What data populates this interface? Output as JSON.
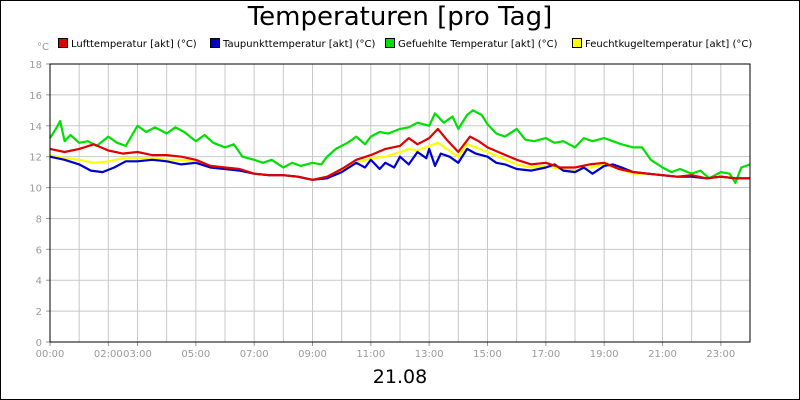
{
  "chart_data": {
    "type": "line",
    "title": "Temperaturen [pro Tag]",
    "ylabel": "°C",
    "xlabel": "21.08",
    "ylim": [
      0,
      18
    ],
    "yticks": [
      0,
      2,
      4,
      6,
      8,
      10,
      12,
      14,
      16,
      18
    ],
    "xlim": [
      0,
      24
    ],
    "xticks": [
      {
        "t": 0,
        "label": "00:00"
      },
      {
        "t": 2,
        "label": "02:00"
      },
      {
        "t": 3,
        "label": "03:00"
      },
      {
        "t": 5,
        "label": "05:00"
      },
      {
        "t": 7,
        "label": "07:00"
      },
      {
        "t": 9,
        "label": "09:00"
      },
      {
        "t": 11,
        "label": "11:00"
      },
      {
        "t": 13,
        "label": "13:00"
      },
      {
        "t": 15,
        "label": "15:00"
      },
      {
        "t": 17,
        "label": "17:00"
      },
      {
        "t": 19,
        "label": "19:00"
      },
      {
        "t": 21,
        "label": "21:00"
      },
      {
        "t": 23,
        "label": "23:00"
      }
    ],
    "grid": true,
    "series": [
      {
        "name": "Lufttemperatur [akt] (°C)",
        "color": "#e00000",
        "points": [
          [
            0,
            12.5
          ],
          [
            0.5,
            12.3
          ],
          [
            1,
            12.5
          ],
          [
            1.5,
            12.8
          ],
          [
            2,
            12.4
          ],
          [
            2.5,
            12.2
          ],
          [
            3,
            12.3
          ],
          [
            3.5,
            12.1
          ],
          [
            4,
            12.1
          ],
          [
            4.5,
            12
          ],
          [
            5,
            11.8
          ],
          [
            5.5,
            11.4
          ],
          [
            6,
            11.3
          ],
          [
            6.5,
            11.2
          ],
          [
            7,
            10.9
          ],
          [
            7.5,
            10.8
          ],
          [
            8,
            10.8
          ],
          [
            8.5,
            10.7
          ],
          [
            9,
            10.5
          ],
          [
            9.5,
            10.7
          ],
          [
            10,
            11.2
          ],
          [
            10.5,
            11.8
          ],
          [
            11,
            12.1
          ],
          [
            11.5,
            12.5
          ],
          [
            12,
            12.7
          ],
          [
            12.3,
            13.2
          ],
          [
            12.6,
            12.8
          ],
          [
            13,
            13.2
          ],
          [
            13.3,
            13.8
          ],
          [
            13.6,
            13.1
          ],
          [
            14,
            12.3
          ],
          [
            14.4,
            13.3
          ],
          [
            14.7,
            13.0
          ],
          [
            15,
            12.6
          ],
          [
            15.5,
            12.2
          ],
          [
            16,
            11.8
          ],
          [
            16.5,
            11.5
          ],
          [
            17,
            11.6
          ],
          [
            17.5,
            11.3
          ],
          [
            18,
            11.3
          ],
          [
            18.5,
            11.5
          ],
          [
            19,
            11.6
          ],
          [
            19.5,
            11.2
          ],
          [
            20,
            11
          ],
          [
            20.5,
            10.9
          ],
          [
            21,
            10.8
          ],
          [
            21.5,
            10.7
          ],
          [
            22,
            10.8
          ],
          [
            22.5,
            10.6
          ],
          [
            23,
            10.7
          ],
          [
            23.5,
            10.6
          ],
          [
            24,
            10.6
          ]
        ]
      },
      {
        "name": "Taupunkttemperatur [akt] (°C)",
        "color": "#0000cc",
        "points": [
          [
            0,
            12
          ],
          [
            0.5,
            11.8
          ],
          [
            1,
            11.5
          ],
          [
            1.4,
            11.1
          ],
          [
            1.8,
            11
          ],
          [
            2.2,
            11.3
          ],
          [
            2.6,
            11.7
          ],
          [
            3,
            11.7
          ],
          [
            3.5,
            11.8
          ],
          [
            4,
            11.7
          ],
          [
            4.5,
            11.5
          ],
          [
            5,
            11.6
          ],
          [
            5.5,
            11.3
          ],
          [
            6,
            11.2
          ],
          [
            6.5,
            11.1
          ],
          [
            7,
            10.9
          ],
          [
            7.5,
            10.8
          ],
          [
            8,
            10.8
          ],
          [
            8.5,
            10.7
          ],
          [
            9,
            10.5
          ],
          [
            9.5,
            10.6
          ],
          [
            10,
            11
          ],
          [
            10.5,
            11.6
          ],
          [
            10.8,
            11.3
          ],
          [
            11,
            11.8
          ],
          [
            11.3,
            11.2
          ],
          [
            11.5,
            11.6
          ],
          [
            11.8,
            11.3
          ],
          [
            12,
            12
          ],
          [
            12.3,
            11.5
          ],
          [
            12.6,
            12.3
          ],
          [
            12.9,
            11.9
          ],
          [
            13,
            12.5
          ],
          [
            13.2,
            11.4
          ],
          [
            13.4,
            12.2
          ],
          [
            13.7,
            12.0
          ],
          [
            14,
            11.6
          ],
          [
            14.3,
            12.5
          ],
          [
            14.6,
            12.2
          ],
          [
            15,
            12.0
          ],
          [
            15.3,
            11.6
          ],
          [
            15.6,
            11.5
          ],
          [
            16,
            11.2
          ],
          [
            16.5,
            11.1
          ],
          [
            17,
            11.3
          ],
          [
            17.3,
            11.5
          ],
          [
            17.6,
            11.1
          ],
          [
            18,
            11.0
          ],
          [
            18.3,
            11.3
          ],
          [
            18.6,
            10.9
          ],
          [
            19,
            11.4
          ],
          [
            19.3,
            11.5
          ],
          [
            19.6,
            11.3
          ],
          [
            20,
            11.0
          ],
          [
            20.5,
            10.9
          ],
          [
            21,
            10.8
          ],
          [
            21.5,
            10.7
          ],
          [
            22,
            10.7
          ],
          [
            22.5,
            10.6
          ],
          [
            23,
            10.7
          ],
          [
            23.5,
            10.6
          ],
          [
            24,
            10.6
          ]
        ]
      },
      {
        "name": "Gefuehlte Temperatur [akt] (°C)",
        "color": "#00e000",
        "points": [
          [
            0,
            13.2
          ],
          [
            0.2,
            13.8
          ],
          [
            0.35,
            14.3
          ],
          [
            0.5,
            13.0
          ],
          [
            0.7,
            13.4
          ],
          [
            1,
            12.9
          ],
          [
            1.3,
            13.0
          ],
          [
            1.6,
            12.7
          ],
          [
            2,
            13.3
          ],
          [
            2.3,
            12.9
          ],
          [
            2.6,
            12.7
          ],
          [
            3,
            14.0
          ],
          [
            3.3,
            13.6
          ],
          [
            3.6,
            13.9
          ],
          [
            4,
            13.5
          ],
          [
            4.3,
            13.9
          ],
          [
            4.6,
            13.6
          ],
          [
            5,
            13.0
          ],
          [
            5.3,
            13.4
          ],
          [
            5.6,
            12.9
          ],
          [
            6,
            12.6
          ],
          [
            6.3,
            12.8
          ],
          [
            6.6,
            12.0
          ],
          [
            7,
            11.8
          ],
          [
            7.3,
            11.6
          ],
          [
            7.6,
            11.8
          ],
          [
            8,
            11.3
          ],
          [
            8.3,
            11.6
          ],
          [
            8.6,
            11.4
          ],
          [
            9,
            11.6
          ],
          [
            9.3,
            11.5
          ],
          [
            9.5,
            12.0
          ],
          [
            9.8,
            12.5
          ],
          [
            10.2,
            12.9
          ],
          [
            10.5,
            13.3
          ],
          [
            10.8,
            12.8
          ],
          [
            11,
            13.3
          ],
          [
            11.3,
            13.6
          ],
          [
            11.6,
            13.5
          ],
          [
            12,
            13.8
          ],
          [
            12.3,
            13.9
          ],
          [
            12.6,
            14.2
          ],
          [
            13,
            14.0
          ],
          [
            13.2,
            14.8
          ],
          [
            13.5,
            14.2
          ],
          [
            13.8,
            14.6
          ],
          [
            14,
            13.8
          ],
          [
            14.3,
            14.7
          ],
          [
            14.5,
            15.0
          ],
          [
            14.8,
            14.7
          ],
          [
            15,
            14.1
          ],
          [
            15.3,
            13.5
          ],
          [
            15.6,
            13.3
          ],
          [
            16,
            13.8
          ],
          [
            16.3,
            13.1
          ],
          [
            16.6,
            13.0
          ],
          [
            17,
            13.2
          ],
          [
            17.3,
            12.9
          ],
          [
            17.6,
            13.0
          ],
          [
            18,
            12.6
          ],
          [
            18.3,
            13.2
          ],
          [
            18.6,
            13.0
          ],
          [
            19,
            13.2
          ],
          [
            19.3,
            13.0
          ],
          [
            19.6,
            12.8
          ],
          [
            20,
            12.6
          ],
          [
            20.3,
            12.6
          ],
          [
            20.6,
            11.8
          ],
          [
            21,
            11.3
          ],
          [
            21.3,
            11.0
          ],
          [
            21.6,
            11.2
          ],
          [
            22,
            10.9
          ],
          [
            22.3,
            11.1
          ],
          [
            22.6,
            10.6
          ],
          [
            23,
            11.0
          ],
          [
            23.3,
            10.9
          ],
          [
            23.5,
            10.3
          ],
          [
            23.7,
            11.3
          ],
          [
            24,
            11.5
          ]
        ]
      },
      {
        "name": "Feuchtkugeltemperatur [akt] (°C)",
        "color": "#ffff00",
        "points": [
          [
            0,
            12.1
          ],
          [
            0.5,
            11.9
          ],
          [
            1,
            11.8
          ],
          [
            1.5,
            11.6
          ],
          [
            2,
            11.7
          ],
          [
            2.5,
            11.9
          ],
          [
            3,
            11.9
          ],
          [
            3.5,
            11.9
          ],
          [
            4,
            11.8
          ],
          [
            4.5,
            11.8
          ],
          [
            5,
            11.7
          ],
          [
            5.5,
            11.3
          ],
          [
            6,
            11.2
          ],
          [
            6.5,
            11.1
          ],
          [
            7,
            10.9
          ],
          [
            7.5,
            10.8
          ],
          [
            8,
            10.8
          ],
          [
            8.5,
            10.7
          ],
          [
            9,
            10.5
          ],
          [
            9.5,
            10.6
          ],
          [
            10,
            11.1
          ],
          [
            10.5,
            11.6
          ],
          [
            11,
            11.9
          ],
          [
            11.5,
            12.0
          ],
          [
            12,
            12.3
          ],
          [
            12.3,
            12.5
          ],
          [
            12.6,
            12.4
          ],
          [
            13,
            12.7
          ],
          [
            13.3,
            12.9
          ],
          [
            13.6,
            12.5
          ],
          [
            14,
            12.0
          ],
          [
            14.3,
            12.8
          ],
          [
            14.6,
            12.6
          ],
          [
            15,
            12.3
          ],
          [
            15.5,
            11.9
          ],
          [
            16,
            11.5
          ],
          [
            16.5,
            11.3
          ],
          [
            17,
            11.4
          ],
          [
            17.5,
            11.2
          ],
          [
            18,
            11.1
          ],
          [
            18.5,
            11.3
          ],
          [
            19,
            11.5
          ],
          [
            19.5,
            11.2
          ],
          [
            20,
            10.9
          ],
          [
            20.5,
            10.9
          ],
          [
            21,
            10.8
          ],
          [
            21.5,
            10.7
          ],
          [
            22,
            10.7
          ],
          [
            22.5,
            10.6
          ],
          [
            23,
            10.7
          ],
          [
            23.5,
            10.6
          ],
          [
            24,
            10.6
          ]
        ]
      }
    ]
  }
}
